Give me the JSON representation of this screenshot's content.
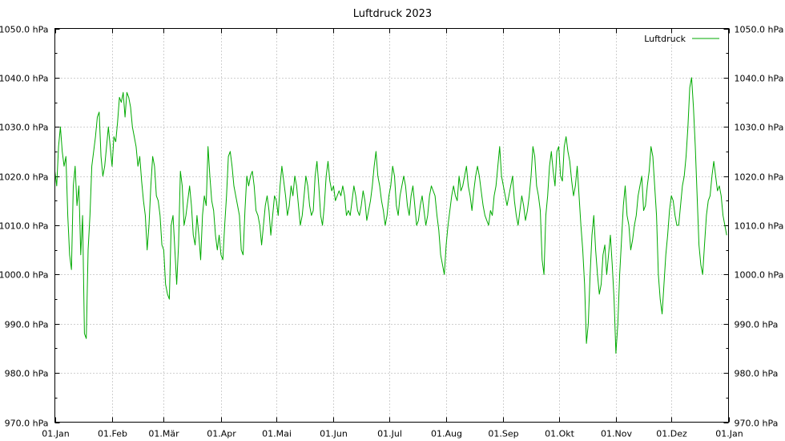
{
  "chart_data": {
    "type": "line",
    "title": "Luftdruck 2023",
    "xlabel": "",
    "ylabel": "",
    "unit": "hPa",
    "ylim": [
      970,
      1050
    ],
    "y_ticks": [
      "1050.0 hPa",
      "1040.0 hPa",
      "1030.0 hPa",
      "1020.0 hPa",
      "1010.0 hPa",
      "1000.0 hPa",
      "990.0 hPa",
      "980.0 hPa",
      "970.0 hPa"
    ],
    "y_tick_values": [
      1050,
      1040,
      1030,
      1020,
      1010,
      1000,
      990,
      980,
      970
    ],
    "x_ticks": [
      "01.Jan",
      "01.Feb",
      "01.Mär",
      "01.Apr",
      "01.Mai",
      "01.Jun",
      "01.Jul",
      "01.Aug",
      "01.Sep",
      "01.Okt",
      "01.Nov",
      "01.Dez",
      "01.Jan"
    ],
    "x_tick_days": [
      0,
      31,
      59,
      90,
      120,
      151,
      181,
      212,
      243,
      273,
      304,
      334,
      365
    ],
    "xlim_days": [
      0,
      365
    ],
    "grid": true,
    "legend_position": "top-right",
    "series": [
      {
        "name": "Luftdruck",
        "color": "#00aa00",
        "x_day_of_year": [
          0,
          1,
          2,
          3,
          4,
          5,
          6,
          7,
          8,
          9,
          10,
          11,
          12,
          13,
          14,
          15,
          16,
          17,
          18,
          19,
          20,
          21,
          22,
          23,
          24,
          25,
          26,
          27,
          28,
          29,
          30,
          31,
          32,
          33,
          34,
          35,
          36,
          37,
          38,
          39,
          40,
          41,
          42,
          43,
          44,
          45,
          46,
          47,
          48,
          49,
          50,
          51,
          52,
          53,
          54,
          55,
          56,
          57,
          58,
          59,
          60,
          61,
          62,
          63,
          64,
          65,
          66,
          67,
          68,
          69,
          70,
          71,
          72,
          73,
          74,
          75,
          76,
          77,
          78,
          79,
          80,
          81,
          82,
          83,
          84,
          85,
          86,
          87,
          88,
          89,
          90,
          91,
          92,
          93,
          94,
          95,
          96,
          97,
          98,
          99,
          100,
          101,
          102,
          103,
          104,
          105,
          106,
          107,
          108,
          109,
          110,
          111,
          112,
          113,
          114,
          115,
          116,
          117,
          118,
          119,
          120,
          121,
          122,
          123,
          124,
          125,
          126,
          127,
          128,
          129,
          130,
          131,
          132,
          133,
          134,
          135,
          136,
          137,
          138,
          139,
          140,
          141,
          142,
          143,
          144,
          145,
          146,
          147,
          148,
          149,
          150,
          151,
          152,
          153,
          154,
          155,
          156,
          157,
          158,
          159,
          160,
          161,
          162,
          163,
          164,
          165,
          166,
          167,
          168,
          169,
          170,
          171,
          172,
          173,
          174,
          175,
          176,
          177,
          178,
          179,
          180,
          181,
          182,
          183,
          184,
          185,
          186,
          187,
          188,
          189,
          190,
          191,
          192,
          193,
          194,
          195,
          196,
          197,
          198,
          199,
          200,
          201,
          202,
          203,
          204,
          205,
          206,
          207,
          208,
          209,
          210,
          211,
          212,
          213,
          214,
          215,
          216,
          217,
          218,
          219,
          220,
          221,
          222,
          223,
          224,
          225,
          226,
          227,
          228,
          229,
          230,
          231,
          232,
          233,
          234,
          235,
          236,
          237,
          238,
          239,
          240,
          241,
          242,
          243,
          244,
          245,
          246,
          247,
          248,
          249,
          250,
          251,
          252,
          253,
          254,
          255,
          256,
          257,
          258,
          259,
          260,
          261,
          262,
          263,
          264,
          265,
          266,
          267,
          268,
          269,
          270,
          271,
          272,
          273,
          274,
          275,
          276,
          277,
          278,
          279,
          280,
          281,
          282,
          283,
          284,
          285,
          286,
          287,
          288,
          289,
          290,
          291,
          292,
          293,
          294,
          295,
          296,
          297,
          298,
          299,
          300,
          301,
          302,
          303,
          304,
          305,
          306,
          307,
          308,
          309,
          310,
          311,
          312,
          313,
          314,
          315,
          316,
          317,
          318,
          319,
          320,
          321,
          322,
          323,
          324,
          325,
          326,
          327,
          328,
          329,
          330,
          331,
          332,
          333,
          334,
          335,
          336,
          337,
          338,
          339,
          340,
          341,
          342,
          343,
          344,
          345,
          346,
          347,
          348,
          349,
          350,
          351,
          352,
          353,
          354,
          355,
          356,
          357,
          358,
          359,
          360,
          361,
          362,
          363,
          364,
          365
        ],
        "values": [
          1021,
          1018,
          1026,
          1030,
          1025,
          1022,
          1024,
          1012,
          1004,
          1001,
          1018,
          1022,
          1014,
          1018,
          1004,
          1012,
          988,
          987,
          1005,
          1012,
          1022,
          1025,
          1028,
          1032,
          1033,
          1024,
          1020,
          1022,
          1026,
          1030,
          1026,
          1022,
          1028,
          1027,
          1031,
          1036,
          1035,
          1037,
          1032,
          1037,
          1036,
          1034,
          1030,
          1028,
          1026,
          1022,
          1024,
          1019,
          1015,
          1012,
          1005,
          1010,
          1018,
          1024,
          1022,
          1016,
          1015,
          1012,
          1006,
          1005,
          998,
          996,
          995,
          1010,
          1012,
          1005,
          998,
          1006,
          1021,
          1018,
          1010,
          1012,
          1015,
          1018,
          1014,
          1008,
          1006,
          1012,
          1008,
          1003,
          1012,
          1016,
          1014,
          1026,
          1020,
          1015,
          1013,
          1008,
          1005,
          1008,
          1004,
          1003,
          1010,
          1016,
          1024,
          1025,
          1022,
          1018,
          1016,
          1014,
          1012,
          1005,
          1004,
          1013,
          1020,
          1018,
          1020,
          1021,
          1018,
          1013,
          1012,
          1010,
          1006,
          1010,
          1014,
          1016,
          1013,
          1008,
          1012,
          1016,
          1015,
          1012,
          1018,
          1022,
          1019,
          1016,
          1012,
          1014,
          1018,
          1016,
          1020,
          1018,
          1014,
          1010,
          1012,
          1016,
          1020,
          1018,
          1014,
          1012,
          1013,
          1020,
          1023,
          1018,
          1012,
          1010,
          1014,
          1020,
          1023,
          1019,
          1017,
          1018,
          1015,
          1016,
          1017,
          1016,
          1018,
          1016,
          1012,
          1013,
          1012,
          1015,
          1018,
          1016,
          1013,
          1012,
          1014,
          1017,
          1015,
          1011,
          1013,
          1015,
          1018,
          1022,
          1025,
          1020,
          1018,
          1015,
          1013,
          1010,
          1012,
          1016,
          1018,
          1022,
          1020,
          1014,
          1012,
          1016,
          1018,
          1020,
          1018,
          1014,
          1012,
          1016,
          1018,
          1014,
          1010,
          1011,
          1014,
          1016,
          1013,
          1010,
          1012,
          1016,
          1018,
          1017,
          1016,
          1012,
          1009,
          1004,
          1002,
          1000,
          1006,
          1010,
          1013,
          1016,
          1018,
          1016,
          1015,
          1020,
          1017,
          1018,
          1020,
          1022,
          1018,
          1016,
          1013,
          1017,
          1020,
          1022,
          1020,
          1017,
          1014,
          1012,
          1011,
          1010,
          1013,
          1012,
          1016,
          1018,
          1022,
          1026,
          1020,
          1018,
          1016,
          1014,
          1016,
          1018,
          1020,
          1015,
          1012,
          1010,
          1013,
          1016,
          1014,
          1011,
          1013,
          1016,
          1020,
          1026,
          1024,
          1018,
          1016,
          1013,
          1003,
          1000,
          1012,
          1016,
          1022,
          1025,
          1021,
          1018,
          1025,
          1026,
          1020,
          1019,
          1026,
          1028,
          1025,
          1023,
          1019,
          1016,
          1018,
          1022,
          1016,
          1010,
          1005,
          998,
          986,
          990,
          1000,
          1008,
          1012,
          1005,
          1000,
          996,
          998,
          1004,
          1006,
          1000,
          1004,
          1008,
          1002,
          995,
          984,
          990,
          1000,
          1007,
          1014,
          1018,
          1012,
          1010,
          1005,
          1007,
          1010,
          1012,
          1016,
          1018,
          1020,
          1013,
          1014,
          1018,
          1021,
          1026,
          1024,
          1018,
          1012,
          1000,
          995,
          992,
          998,
          1004,
          1008,
          1013,
          1016,
          1015,
          1012,
          1010,
          1010,
          1014,
          1018,
          1020,
          1024,
          1030,
          1038,
          1040,
          1034,
          1026,
          1016,
          1006,
          1002,
          1000,
          1006,
          1012,
          1015,
          1016,
          1020,
          1023,
          1020,
          1017,
          1018,
          1016,
          1012,
          1010,
          1008
        ]
      }
    ]
  }
}
